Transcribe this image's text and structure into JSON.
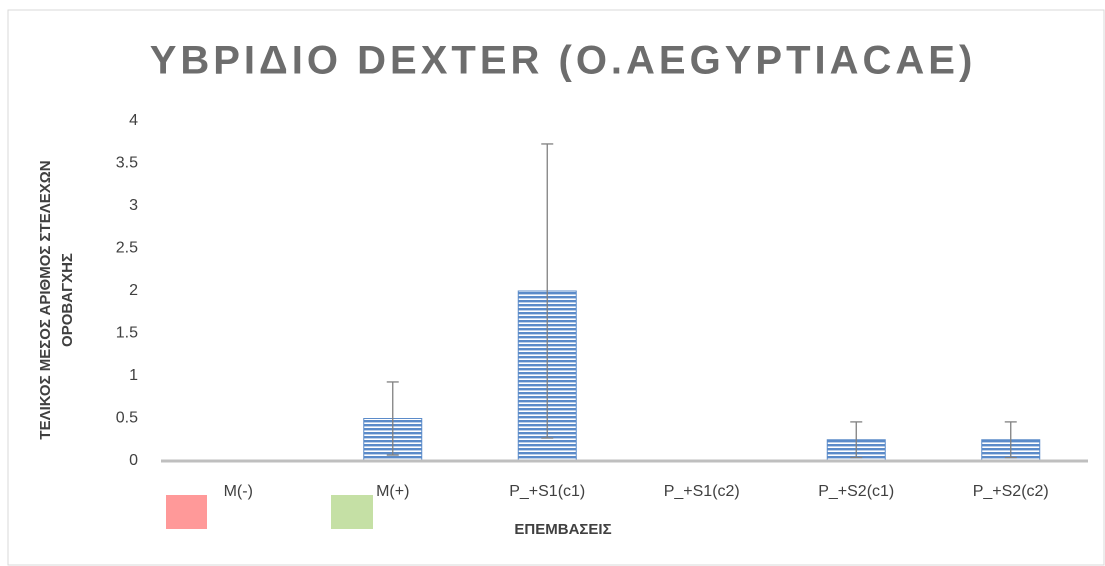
{
  "chart_data": {
    "type": "bar",
    "title": "ΥΒΡΙΔΙΟ DEXTER (O.AEGYPTIACAE)",
    "x_label": "ΕΠΕΜΒΑΣΕΙΣ",
    "y_label": [
      "ΤΕΛΙΚΟΣ ΜΕΣΟΣ ΑΡΙΘΜΟΣ ΣΤΕΛΕΧΩΝ",
      "ΟΡΟΒΑΓΧΗΣ"
    ],
    "categories": [
      "M(-)",
      "M(+)",
      "P_+S1(c1)",
      "P_+S1(c2)",
      "P_+S2(c1)",
      "P_+S2(c2)"
    ],
    "values": [
      0,
      0.5,
      2,
      0,
      0.25,
      0.25
    ],
    "errors": [
      0,
      0.43,
      1.73,
      0,
      0.21,
      0.21
    ],
    "color": "#5b8bc9",
    "error_color": "#808080",
    "ylim": [
      0,
      4
    ],
    "yticks": [
      0,
      0.5,
      1,
      1.5,
      2,
      2.5,
      3,
      3.5,
      4
    ],
    "grid": false
  }
}
